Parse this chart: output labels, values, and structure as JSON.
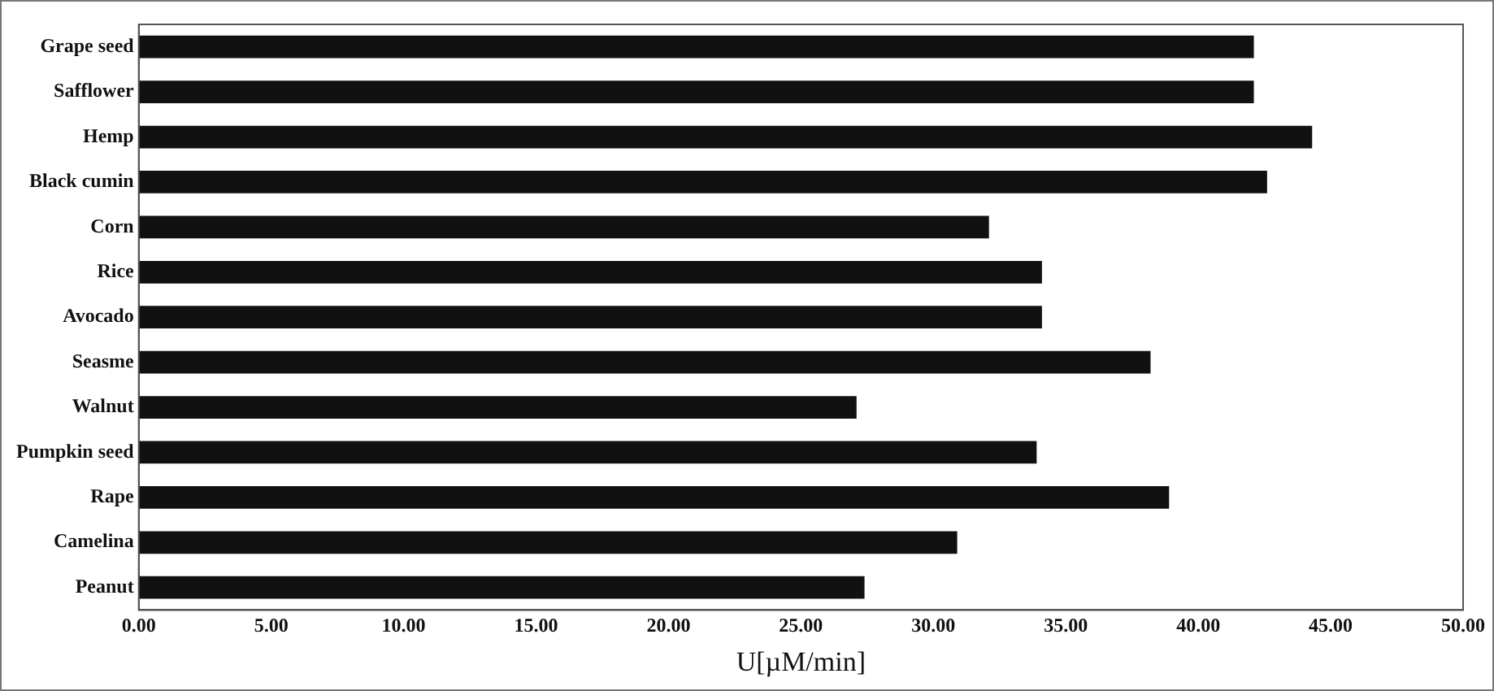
{
  "chart_data": {
    "type": "bar",
    "orientation": "horizontal",
    "xlabel": "U[µM/min]",
    "categories": [
      "Grape seed",
      "Safflower",
      "Hemp",
      "Black cumin",
      "Corn",
      "Rice",
      "Avocado",
      "Seasme",
      "Walnut",
      "Pumpkin seed",
      "Rape",
      "Camelina",
      "Peanut"
    ],
    "values": [
      42.1,
      42.1,
      44.3,
      42.6,
      32.1,
      34.1,
      34.1,
      38.2,
      27.1,
      33.9,
      38.9,
      30.9,
      27.4
    ],
    "color": "#111111",
    "xlim": [
      0,
      50
    ],
    "xticks": [
      {
        "value": 0,
        "label": "0.00"
      },
      {
        "value": 5,
        "label": "5.00"
      },
      {
        "value": 10,
        "label": "10.00"
      },
      {
        "value": 15,
        "label": "15.00"
      },
      {
        "value": 20,
        "label": "20.00"
      },
      {
        "value": 25,
        "label": "25.00"
      },
      {
        "value": 30,
        "label": "30.00"
      },
      {
        "value": 35,
        "label": "35.00"
      },
      {
        "value": 40,
        "label": "40.00"
      },
      {
        "value": 45,
        "label": "45.00"
      },
      {
        "value": 50,
        "label": "50.00"
      }
    ],
    "grid": false,
    "legend": false
  }
}
